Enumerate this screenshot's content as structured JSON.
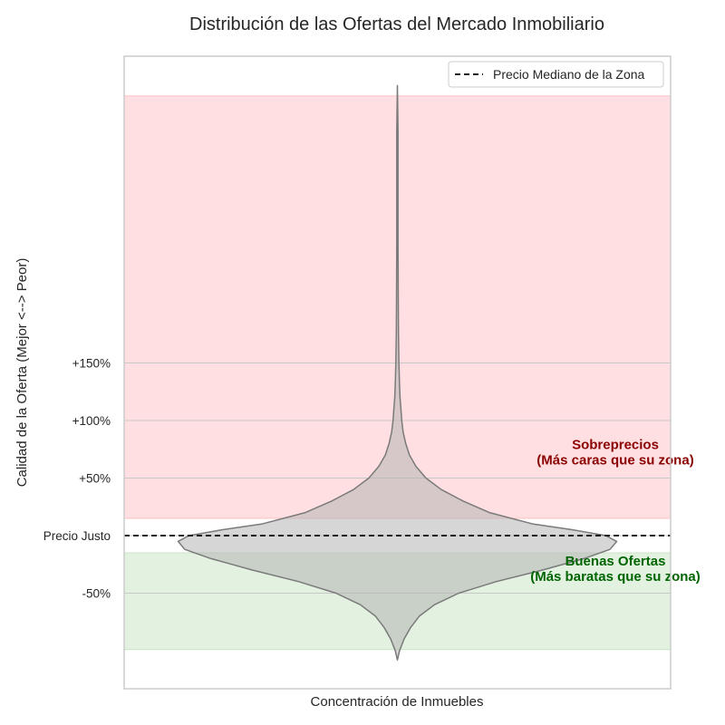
{
  "chart_data": {
    "type": "violin",
    "title": "Distribución de las Ofertas del Mercado Inmobiliario",
    "xlabel": "Concentración de Inmuebles",
    "ylabel": "Calidad de la Oferta (Mejor <--> Peor)",
    "ylim": [
      -135,
      380
    ],
    "y_ticks": [
      {
        "value": 150,
        "label": "+150%"
      },
      {
        "value": 100,
        "label": "+100%"
      },
      {
        "value": 50,
        "label": "+50%"
      },
      {
        "value": 0,
        "label": "Precio Justo"
      },
      {
        "value": -50,
        "label": "-50%"
      }
    ],
    "grid": true,
    "regions": [
      {
        "name": "overpriced",
        "from": 15,
        "to": 382,
        "color": "#ffc0c4"
      },
      {
        "name": "good-deals",
        "from": -15,
        "to": -99,
        "color": "#c7e3c4"
      }
    ],
    "reference_line": {
      "value": 0,
      "style": "dashed",
      "color": "#000000",
      "label": "Precio Mediano de la Zona"
    },
    "legend": {
      "placement": "top-right",
      "entries": [
        "Precio Mediano de la Zona"
      ]
    },
    "annotations": [
      {
        "region": "overpriced",
        "lines": [
          "Sobreprecios",
          "(Más caras que su zona)"
        ],
        "color": "#8b0000",
        "y": 72
      },
      {
        "region": "good-deals",
        "lines": [
          "Buenas Ofertas",
          "(Más baratas que su zona)"
        ],
        "color": "#006400",
        "y": -29
      }
    ],
    "violin": {
      "color": "#b4b4b4",
      "outline": "#7a7a7a",
      "y_min": -108,
      "y_max": 391,
      "profile": [
        {
          "y": -108,
          "density": 0.0
        },
        {
          "y": -100,
          "density": 0.01
        },
        {
          "y": -90,
          "density": 0.03
        },
        {
          "y": -80,
          "density": 0.06
        },
        {
          "y": -70,
          "density": 0.1
        },
        {
          "y": -60,
          "density": 0.17
        },
        {
          "y": -50,
          "density": 0.28
        },
        {
          "y": -40,
          "density": 0.45
        },
        {
          "y": -30,
          "density": 0.66
        },
        {
          "y": -20,
          "density": 0.85
        },
        {
          "y": -12,
          "density": 0.97
        },
        {
          "y": -5,
          "density": 1.0
        },
        {
          "y": 0,
          "density": 0.95
        },
        {
          "y": 5,
          "density": 0.8
        },
        {
          "y": 10,
          "density": 0.62
        },
        {
          "y": 20,
          "density": 0.42
        },
        {
          "y": 30,
          "density": 0.3
        },
        {
          "y": 40,
          "density": 0.2
        },
        {
          "y": 50,
          "density": 0.13
        },
        {
          "y": 60,
          "density": 0.085
        },
        {
          "y": 70,
          "density": 0.055
        },
        {
          "y": 80,
          "density": 0.038
        },
        {
          "y": 90,
          "density": 0.026
        },
        {
          "y": 100,
          "density": 0.02
        },
        {
          "y": 110,
          "density": 0.016
        },
        {
          "y": 120,
          "density": 0.012
        },
        {
          "y": 135,
          "density": 0.009
        },
        {
          "y": 150,
          "density": 0.007
        },
        {
          "y": 175,
          "density": 0.005
        },
        {
          "y": 200,
          "density": 0.004
        },
        {
          "y": 250,
          "density": 0.003
        },
        {
          "y": 300,
          "density": 0.003
        },
        {
          "y": 350,
          "density": 0.003
        },
        {
          "y": 391,
          "density": 0.0
        }
      ]
    }
  }
}
